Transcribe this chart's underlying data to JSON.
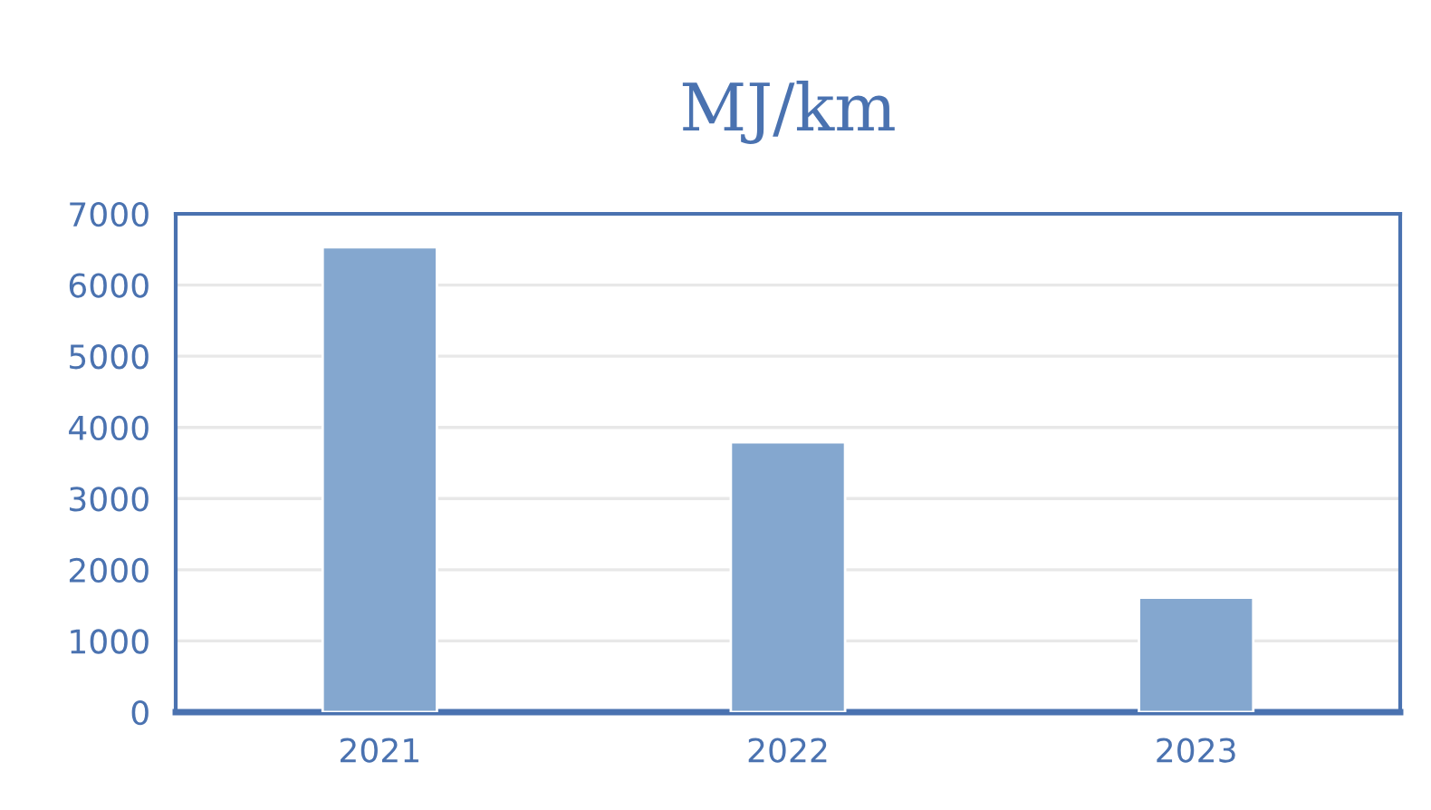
{
  "chart_data": {
    "type": "bar",
    "title": "MJ/km",
    "categories": [
      "2021",
      "2022",
      "2023"
    ],
    "values": [
      6530,
      3790,
      1610
    ],
    "color": "#84a7cf",
    "ylim": [
      0,
      7000
    ],
    "yticks": [
      0,
      1000,
      2000,
      3000,
      4000,
      5000,
      6000,
      7000
    ],
    "grid": "y"
  }
}
